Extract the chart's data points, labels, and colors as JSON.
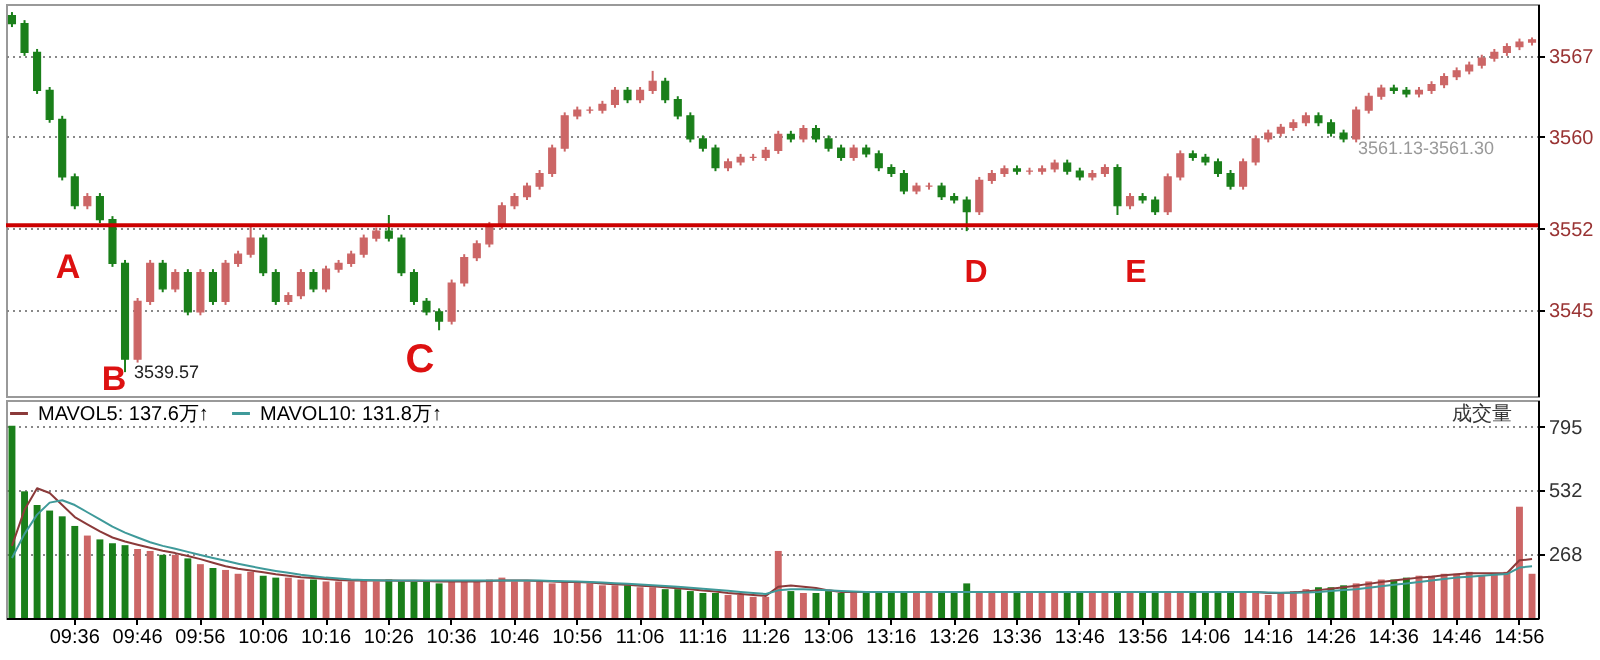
{
  "chart_data": [
    {
      "type": "candlestick",
      "categories": [
        null,
        null,
        null,
        null,
        null,
        null,
        null,
        null,
        null,
        null,
        null,
        null,
        null,
        null,
        null,
        null,
        null,
        null,
        null,
        null,
        null,
        null,
        null,
        null,
        null,
        null,
        null,
        null,
        null,
        null,
        null,
        null,
        null,
        null,
        null,
        null,
        null,
        null,
        null,
        null,
        null,
        null,
        null,
        null,
        null,
        null,
        null,
        null,
        null,
        null,
        null,
        null,
        null,
        null,
        null,
        null,
        null,
        null,
        null,
        null,
        null,
        null,
        null,
        null,
        null,
        null,
        null,
        null,
        null,
        null,
        null,
        null,
        null,
        null,
        null,
        null,
        null,
        null,
        null,
        null,
        null,
        null,
        null,
        null,
        null,
        null,
        null,
        null,
        null,
        null,
        null,
        null,
        null,
        null,
        null,
        null,
        null,
        null,
        null,
        null,
        null,
        null,
        null,
        null,
        null,
        null,
        null,
        null,
        null,
        null,
        null,
        null,
        null,
        null,
        null,
        null,
        null,
        null,
        null,
        null,
        null,
        null
      ],
      "ohlc": [
        [
          3570.5,
          3570.8,
          3569.5,
          3569.8
        ],
        [
          3569.8,
          3570.1,
          3567.0,
          3567.3
        ],
        [
          3567.3,
          3567.6,
          3563.7,
          3564.0
        ],
        [
          3564.0,
          3564.3,
          3561.2,
          3561.5
        ],
        [
          3561.5,
          3561.8,
          3556.2,
          3556.5
        ],
        [
          3556.5,
          3556.8,
          3553.7,
          3554.0
        ],
        [
          3554.0,
          3555.1,
          3553.7,
          3554.8
        ],
        [
          3554.8,
          3555.1,
          3552.5,
          3552.8
        ],
        [
          3552.8,
          3553.1,
          3548.7,
          3549.0
        ],
        [
          3549.0,
          3549.3,
          3539.57,
          3540.7
        ],
        [
          3540.7,
          3546.0,
          3540.4,
          3545.7
        ],
        [
          3545.7,
          3549.3,
          3545.4,
          3549.0
        ],
        [
          3549.0,
          3549.3,
          3546.5,
          3546.8
        ],
        [
          3546.8,
          3548.5,
          3546.5,
          3548.2
        ],
        [
          3548.2,
          3548.5,
          3544.5,
          3544.8
        ],
        [
          3544.8,
          3548.5,
          3544.5,
          3548.2
        ],
        [
          3548.2,
          3548.5,
          3545.4,
          3545.7
        ],
        [
          3545.7,
          3549.3,
          3545.4,
          3549.0
        ],
        [
          3549.0,
          3550.1,
          3548.7,
          3549.8
        ],
        [
          3549.8,
          3552.3,
          3549.5,
          3551.2
        ],
        [
          3551.2,
          3551.5,
          3547.9,
          3548.2
        ],
        [
          3548.2,
          3548.5,
          3545.4,
          3545.7
        ],
        [
          3545.7,
          3546.5,
          3545.4,
          3546.2
        ],
        [
          3546.2,
          3548.5,
          3545.9,
          3548.2
        ],
        [
          3548.2,
          3548.5,
          3546.5,
          3546.8
        ],
        [
          3546.8,
          3548.8,
          3546.5,
          3548.5
        ],
        [
          3548.5,
          3549.3,
          3548.2,
          3549.0
        ],
        [
          3549.0,
          3550.1,
          3548.7,
          3549.8
        ],
        [
          3549.8,
          3551.5,
          3549.5,
          3551.2
        ],
        [
          3551.2,
          3552.1,
          3550.9,
          3551.8
        ],
        [
          3551.8,
          3553.2,
          3550.9,
          3551.2
        ],
        [
          3551.2,
          3551.5,
          3547.9,
          3548.2
        ],
        [
          3548.2,
          3548.5,
          3545.4,
          3545.7
        ],
        [
          3545.7,
          3546.0,
          3544.5,
          3544.8
        ],
        [
          3544.8,
          3545.1,
          3543.2,
          3544.0
        ],
        [
          3544.0,
          3547.6,
          3543.7,
          3547.3
        ],
        [
          3547.3,
          3549.8,
          3547.0,
          3549.5
        ],
        [
          3549.5,
          3551.0,
          3549.2,
          3550.7
        ],
        [
          3550.7,
          3552.6,
          3550.4,
          3552.3
        ],
        [
          3552.3,
          3554.3,
          3552.0,
          3554.0
        ],
        [
          3554.0,
          3555.1,
          3553.7,
          3554.8
        ],
        [
          3554.8,
          3556.0,
          3554.5,
          3555.7
        ],
        [
          3555.7,
          3557.1,
          3555.4,
          3556.8
        ],
        [
          3556.8,
          3559.3,
          3556.5,
          3559.0
        ],
        [
          3559.0,
          3562.1,
          3558.7,
          3561.8
        ],
        [
          3561.8,
          3562.6,
          3561.5,
          3562.3
        ],
        [
          3562.3,
          3562.6,
          3562.0,
          3562.3
        ],
        [
          3562.3,
          3563.1,
          3562.0,
          3562.8
        ],
        [
          3562.8,
          3564.3,
          3562.5,
          3564.0
        ],
        [
          3564.0,
          3564.3,
          3562.9,
          3563.2
        ],
        [
          3563.2,
          3564.3,
          3562.9,
          3564.0
        ],
        [
          3564.0,
          3565.7,
          3563.7,
          3564.8
        ],
        [
          3564.8,
          3565.1,
          3562.9,
          3563.2
        ],
        [
          3563.2,
          3563.5,
          3561.5,
          3561.8
        ],
        [
          3561.8,
          3562.1,
          3559.5,
          3559.8
        ],
        [
          3559.8,
          3560.1,
          3558.7,
          3559.0
        ],
        [
          3559.0,
          3559.3,
          3557.0,
          3557.3
        ],
        [
          3557.3,
          3558.1,
          3557.0,
          3557.8
        ],
        [
          3557.8,
          3558.5,
          3557.5,
          3558.2
        ],
        [
          3558.2,
          3558.5,
          3557.9,
          3558.2
        ],
        [
          3558.2,
          3559.1,
          3557.9,
          3558.8
        ],
        [
          3558.8,
          3560.5,
          3558.5,
          3560.2
        ],
        [
          3560.2,
          3560.5,
          3559.5,
          3559.8
        ],
        [
          3559.8,
          3561.0,
          3559.5,
          3560.7
        ],
        [
          3560.7,
          3561.0,
          3559.5,
          3559.8
        ],
        [
          3559.8,
          3560.1,
          3558.7,
          3559.0
        ],
        [
          3559.0,
          3559.3,
          3557.9,
          3558.2
        ],
        [
          3558.2,
          3559.3,
          3557.9,
          3559.0
        ],
        [
          3559.0,
          3559.3,
          3558.2,
          3558.5
        ],
        [
          3558.5,
          3558.8,
          3557.0,
          3557.3
        ],
        [
          3557.3,
          3557.6,
          3556.5,
          3556.8
        ],
        [
          3556.8,
          3557.1,
          3555.0,
          3555.3
        ],
        [
          3555.3,
          3556.0,
          3555.0,
          3555.7
        ],
        [
          3555.7,
          3556.0,
          3555.4,
          3555.7
        ],
        [
          3555.7,
          3556.0,
          3554.5,
          3554.8
        ],
        [
          3554.8,
          3555.1,
          3554.2,
          3554.5
        ],
        [
          3554.5,
          3554.8,
          3551.8,
          3553.5
        ],
        [
          3553.5,
          3556.5,
          3553.2,
          3556.2
        ],
        [
          3556.2,
          3557.1,
          3555.9,
          3556.8
        ],
        [
          3556.8,
          3557.5,
          3556.5,
          3557.2
        ],
        [
          3557.2,
          3557.5,
          3556.7,
          3557.0
        ],
        [
          3557.0,
          3557.3,
          3556.7,
          3557.0
        ],
        [
          3557.0,
          3557.5,
          3556.7,
          3557.2
        ],
        [
          3557.2,
          3558.0,
          3556.9,
          3557.7
        ],
        [
          3557.7,
          3558.0,
          3556.7,
          3557.0
        ],
        [
          3557.0,
          3557.3,
          3556.2,
          3556.5
        ],
        [
          3556.5,
          3557.1,
          3556.2,
          3556.8
        ],
        [
          3556.8,
          3557.6,
          3556.5,
          3557.3
        ],
        [
          3557.3,
          3557.6,
          3553.2,
          3554.0
        ],
        [
          3554.0,
          3555.1,
          3553.7,
          3554.8
        ],
        [
          3554.8,
          3555.1,
          3554.2,
          3554.5
        ],
        [
          3554.5,
          3554.8,
          3553.2,
          3553.5
        ],
        [
          3553.5,
          3556.8,
          3553.2,
          3556.5
        ],
        [
          3556.5,
          3558.8,
          3556.2,
          3558.5
        ],
        [
          3558.5,
          3558.8,
          3557.9,
          3558.2
        ],
        [
          3558.2,
          3558.5,
          3557.5,
          3557.8
        ],
        [
          3557.8,
          3558.1,
          3556.5,
          3556.8
        ],
        [
          3556.8,
          3557.1,
          3555.4,
          3555.7
        ],
        [
          3555.7,
          3558.1,
          3555.4,
          3557.8
        ],
        [
          3557.8,
          3560.1,
          3557.5,
          3559.8
        ],
        [
          3559.8,
          3560.6,
          3559.5,
          3560.3
        ],
        [
          3560.3,
          3561.1,
          3560.0,
          3560.8
        ],
        [
          3560.8,
          3561.5,
          3560.5,
          3561.2
        ],
        [
          3561.2,
          3562.1,
          3560.9,
          3561.8
        ],
        [
          3561.8,
          3562.1,
          3560.9,
          3561.2
        ],
        [
          3561.2,
          3561.5,
          3560.0,
          3560.3
        ],
        [
          3560.3,
          3560.6,
          3559.5,
          3559.8
        ],
        [
          3559.8,
          3562.6,
          3559.5,
          3562.3
        ],
        [
          3562.3,
          3563.8,
          3562.0,
          3563.5
        ],
        [
          3563.5,
          3564.5,
          3563.2,
          3564.2
        ],
        [
          3564.2,
          3564.5,
          3563.7,
          3564.0
        ],
        [
          3564.0,
          3564.3,
          3563.4,
          3563.7
        ],
        [
          3563.7,
          3564.3,
          3563.4,
          3564.0
        ],
        [
          3564.0,
          3564.8,
          3563.7,
          3564.5
        ],
        [
          3564.5,
          3565.5,
          3564.2,
          3565.2
        ],
        [
          3565.2,
          3566.0,
          3564.9,
          3565.7
        ],
        [
          3565.7,
          3566.5,
          3565.4,
          3566.2
        ],
        [
          3566.2,
          3567.1,
          3565.9,
          3566.8
        ],
        [
          3566.8,
          3567.6,
          3566.5,
          3567.3
        ],
        [
          3567.3,
          3568.1,
          3567.0,
          3567.8
        ],
        [
          3567.8,
          3568.5,
          3567.5,
          3568.2
        ],
        [
          3568.2,
          3568.6,
          3567.9,
          3568.4
        ]
      ],
      "colors": [
        "#1a7f1a",
        "#1a7f1a",
        "#1a7f1a",
        "#1a7f1a",
        "#1a7f1a",
        "#1a7f1a",
        "#cc6666",
        "#1a7f1a",
        "#1a7f1a",
        "#1a7f1a",
        "#cc6666",
        "#cc6666",
        "#1a7f1a",
        "#cc6666",
        "#1a7f1a",
        "#cc6666",
        "#1a7f1a",
        "#cc6666",
        "#cc6666",
        "#cc6666",
        "#1a7f1a",
        "#1a7f1a",
        "#cc6666",
        "#cc6666",
        "#1a7f1a",
        "#cc6666",
        "#cc6666",
        "#cc6666",
        "#cc6666",
        "#cc6666",
        "#1a7f1a",
        "#1a7f1a",
        "#1a7f1a",
        "#1a7f1a",
        "#1a7f1a",
        "#cc6666",
        "#cc6666",
        "#cc6666",
        "#cc6666",
        "#cc6666",
        "#cc6666",
        "#cc6666",
        "#cc6666",
        "#cc6666",
        "#cc6666",
        "#cc6666",
        "#cc6666",
        "#cc6666",
        "#cc6666",
        "#1a7f1a",
        "#cc6666",
        "#cc6666",
        "#1a7f1a",
        "#1a7f1a",
        "#1a7f1a",
        "#1a7f1a",
        "#1a7f1a",
        "#cc6666",
        "#cc6666",
        "#cc6666",
        "#cc6666",
        "#cc6666",
        "#1a7f1a",
        "#cc6666",
        "#1a7f1a",
        "#1a7f1a",
        "#1a7f1a",
        "#cc6666",
        "#1a7f1a",
        "#1a7f1a",
        "#1a7f1a",
        "#1a7f1a",
        "#cc6666",
        "#cc6666",
        "#1a7f1a",
        "#1a7f1a",
        "#1a7f1a",
        "#cc6666",
        "#cc6666",
        "#cc6666",
        "#1a7f1a",
        "#cc6666",
        "#cc6666",
        "#cc6666",
        "#1a7f1a",
        "#1a7f1a",
        "#cc6666",
        "#cc6666",
        "#1a7f1a",
        "#cc6666",
        "#1a7f1a",
        "#1a7f1a",
        "#cc6666",
        "#cc6666",
        "#1a7f1a",
        "#1a7f1a",
        "#1a7f1a",
        "#1a7f1a",
        "#cc6666",
        "#cc6666",
        "#cc6666",
        "#cc6666",
        "#cc6666",
        "#cc6666",
        "#1a7f1a",
        "#1a7f1a",
        "#1a7f1a",
        "#cc6666",
        "#cc6666",
        "#cc6666",
        "#1a7f1a",
        "#1a7f1a",
        "#cc6666",
        "#cc6666",
        "#cc6666",
        "#cc6666",
        "#cc6666",
        "#cc6666",
        "#cc6666",
        "#cc6666",
        "#cc6666",
        "#cc6666"
      ],
      "ylim": [
        3537.5,
        3571.5
      ],
      "yticks": [
        3545,
        3552,
        3560,
        3567
      ],
      "grid": "y",
      "tick_labels": "y",
      "ref_lines": [
        {
          "axis": "y",
          "value": 3552.3,
          "color": "#cc0000"
        }
      ],
      "annotations": [
        "A",
        "B",
        "C",
        "D",
        "E",
        "3539.57",
        "3561.13-3561.30"
      ]
    },
    {
      "type": "bar",
      "categories": [
        null,
        null,
        null,
        null,
        null,
        "09:36",
        null,
        null,
        null,
        null,
        "09:46",
        null,
        null,
        null,
        null,
        "09:56",
        null,
        null,
        null,
        null,
        "10:06",
        null,
        null,
        null,
        null,
        "10:16",
        null,
        null,
        null,
        null,
        "10:26",
        null,
        null,
        null,
        null,
        "10:36",
        null,
        null,
        null,
        null,
        "10:46",
        null,
        null,
        null,
        null,
        "10:56",
        null,
        null,
        null,
        null,
        "11:06",
        null,
        null,
        null,
        null,
        "11:16",
        null,
        null,
        null,
        null,
        "11:26",
        null,
        null,
        null,
        null,
        "13:06",
        null,
        null,
        null,
        null,
        "13:16",
        null,
        null,
        null,
        null,
        "13:26",
        null,
        null,
        null,
        null,
        "13:36",
        null,
        null,
        null,
        null,
        "13:46",
        null,
        null,
        null,
        null,
        "13:56",
        null,
        null,
        null,
        null,
        "14:06",
        null,
        null,
        null,
        null,
        "14:16",
        null,
        null,
        null,
        null,
        "14:26",
        null,
        null,
        null,
        null,
        "14:36",
        null,
        null,
        null,
        null,
        "14:46",
        null,
        null,
        null,
        null,
        "14:56",
        null
      ],
      "values": [
        800,
        527,
        470,
        447,
        423,
        383,
        343,
        327,
        311,
        303,
        287,
        279,
        263,
        263,
        248,
        224,
        208,
        200,
        184,
        192,
        176,
        168,
        168,
        160,
        160,
        152,
        152,
        152,
        160,
        152,
        160,
        152,
        152,
        152,
        144,
        152,
        152,
        152,
        160,
        168,
        152,
        152,
        152,
        144,
        152,
        152,
        144,
        136,
        136,
        136,
        128,
        128,
        120,
        120,
        112,
        104,
        104,
        96,
        96,
        88,
        88,
        279,
        112,
        104,
        104,
        112,
        104,
        112,
        104,
        112,
        104,
        112,
        104,
        112,
        104,
        104,
        144,
        112,
        104,
        104,
        112,
        104,
        104,
        112,
        104,
        104,
        112,
        104,
        112,
        104,
        104,
        112,
        104,
        104,
        112,
        104,
        112,
        104,
        104,
        104,
        96,
        104,
        112,
        120,
        128,
        128,
        136,
        144,
        152,
        160,
        160,
        168,
        176,
        176,
        184,
        184,
        192,
        176,
        184,
        192,
        463,
        184
      ],
      "colors": [
        "#1a7f1a",
        "#1a7f1a",
        "#1a7f1a",
        "#1a7f1a",
        "#1a7f1a",
        "#1a7f1a",
        "#cc6666",
        "#1a7f1a",
        "#1a7f1a",
        "#1a7f1a",
        "#cc6666",
        "#cc6666",
        "#1a7f1a",
        "#cc6666",
        "#1a7f1a",
        "#cc6666",
        "#1a7f1a",
        "#cc6666",
        "#cc6666",
        "#cc6666",
        "#1a7f1a",
        "#1a7f1a",
        "#cc6666",
        "#cc6666",
        "#1a7f1a",
        "#cc6666",
        "#cc6666",
        "#cc6666",
        "#cc6666",
        "#cc6666",
        "#1a7f1a",
        "#1a7f1a",
        "#1a7f1a",
        "#1a7f1a",
        "#1a7f1a",
        "#cc6666",
        "#cc6666",
        "#cc6666",
        "#cc6666",
        "#cc6666",
        "#cc6666",
        "#cc6666",
        "#cc6666",
        "#cc6666",
        "#cc6666",
        "#cc6666",
        "#cc6666",
        "#cc6666",
        "#cc6666",
        "#1a7f1a",
        "#cc6666",
        "#cc6666",
        "#1a7f1a",
        "#1a7f1a",
        "#1a7f1a",
        "#1a7f1a",
        "#1a7f1a",
        "#cc6666",
        "#cc6666",
        "#cc6666",
        "#cc6666",
        "#cc6666",
        "#1a7f1a",
        "#cc6666",
        "#1a7f1a",
        "#1a7f1a",
        "#1a7f1a",
        "#cc6666",
        "#1a7f1a",
        "#1a7f1a",
        "#1a7f1a",
        "#1a7f1a",
        "#cc6666",
        "#cc6666",
        "#1a7f1a",
        "#1a7f1a",
        "#1a7f1a",
        "#cc6666",
        "#cc6666",
        "#cc6666",
        "#1a7f1a",
        "#cc6666",
        "#cc6666",
        "#cc6666",
        "#1a7f1a",
        "#1a7f1a",
        "#cc6666",
        "#cc6666",
        "#1a7f1a",
        "#cc6666",
        "#1a7f1a",
        "#1a7f1a",
        "#cc6666",
        "#cc6666",
        "#1a7f1a",
        "#1a7f1a",
        "#1a7f1a",
        "#1a7f1a",
        "#cc6666",
        "#cc6666",
        "#cc6666",
        "#cc6666",
        "#cc6666",
        "#cc6666",
        "#1a7f1a",
        "#1a7f1a",
        "#1a7f1a",
        "#cc6666",
        "#cc6666",
        "#cc6666",
        "#1a7f1a",
        "#1a7f1a",
        "#cc6666",
        "#cc6666",
        "#cc6666",
        "#cc6666",
        "#cc6666",
        "#cc6666",
        "#cc6666",
        "#cc6666",
        "#cc6666",
        "#cc6666"
      ],
      "series": [
        {
          "type": "line",
          "name": "MAVOL5: 137.6万↑",
          "color": "#8b3a3a",
          "values": [
            300,
            450,
            540,
            520,
            470,
            420,
            390,
            360,
            335,
            318,
            305,
            292,
            280,
            270,
            258,
            245,
            230,
            215,
            205,
            198,
            190,
            182,
            176,
            170,
            166,
            162,
            158,
            156,
            156,
            156,
            156,
            155,
            155,
            154,
            152,
            152,
            152,
            152,
            154,
            156,
            156,
            156,
            154,
            152,
            150,
            150,
            148,
            144,
            140,
            138,
            134,
            132,
            128,
            124,
            120,
            114,
            110,
            104,
            100,
            96,
            92,
            130,
            135,
            130,
            125,
            115,
            108,
            108,
            108,
            108,
            108,
            108,
            108,
            108,
            108,
            108,
            108,
            108,
            108,
            108,
            108,
            108,
            108,
            108,
            108,
            108,
            108,
            108,
            108,
            108,
            108,
            108,
            108,
            108,
            108,
            108,
            108,
            108,
            108,
            108,
            104,
            104,
            106,
            110,
            116,
            122,
            128,
            134,
            142,
            150,
            156,
            162,
            168,
            172,
            178,
            182,
            186,
            186,
            186,
            186,
            240,
            245
          ]
        },
        {
          "type": "line",
          "name": "MAVOL10: 131.8万↑",
          "color": "#3f9a9a",
          "values": [
            250,
            350,
            430,
            480,
            490,
            470,
            440,
            410,
            380,
            355,
            335,
            315,
            300,
            288,
            275,
            262,
            250,
            238,
            226,
            215,
            205,
            196,
            188,
            180,
            174,
            168,
            164,
            160,
            158,
            157,
            156,
            156,
            156,
            156,
            156,
            156,
            156,
            156,
            156,
            156,
            156,
            156,
            156,
            154,
            153,
            152,
            150,
            148,
            145,
            142,
            139,
            136,
            133,
            130,
            126,
            122,
            118,
            113,
            108,
            104,
            100,
            115,
            120,
            120,
            118,
            115,
            112,
            110,
            108,
            108,
            108,
            108,
            108,
            108,
            108,
            108,
            108,
            108,
            108,
            108,
            108,
            108,
            108,
            108,
            108,
            108,
            108,
            108,
            108,
            108,
            108,
            108,
            108,
            108,
            108,
            108,
            108,
            108,
            108,
            108,
            106,
            105,
            105,
            106,
            108,
            112,
            116,
            120,
            126,
            132,
            138,
            144,
            150,
            156,
            162,
            168,
            172,
            176,
            180,
            183,
            210,
            215
          ]
        }
      ],
      "ylim": [
        0,
        907
      ],
      "yticks": [
        268,
        532,
        795
      ],
      "grid": "y",
      "legend": "top left",
      "annotations": [
        "成交量"
      ]
    }
  ]
}
